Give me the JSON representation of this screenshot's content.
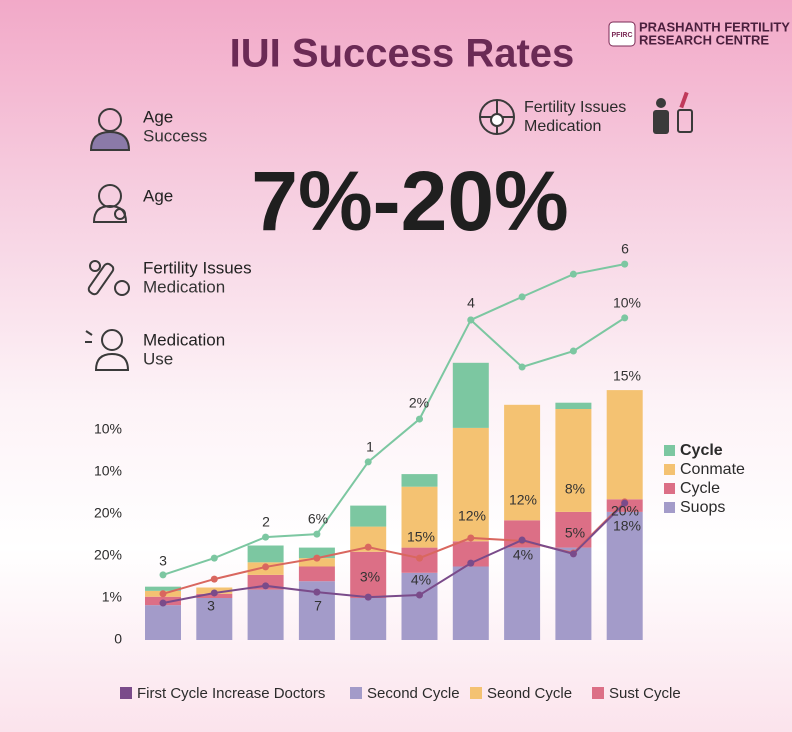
{
  "header": {
    "title": "IUI Success Rates",
    "logo_mark": "PFIRC",
    "logo_lines": [
      "PRASHANTH FERTILITY",
      "RESEARCH CENTRE"
    ],
    "headline": "7%-20%"
  },
  "side_items": [
    [
      "Age",
      "Success"
    ],
    [
      "Age"
    ],
    [
      "Fertility Issues",
      "Medication"
    ],
    [
      "Medication",
      "Use"
    ]
  ],
  "top_right_item": [
    "Fertility Issues",
    "Medication"
  ],
  "chart_data": {
    "type": "stacked-bar-line",
    "categories": [
      null,
      null,
      null,
      null,
      null,
      null,
      null,
      null,
      null,
      null
    ],
    "series": [
      {
        "name": "Suops",
        "color": "#a39bc9",
        "values": [
          0.83,
          1.0,
          1.2,
          1.4,
          1.0,
          1.6,
          1.75,
          2.2,
          2.2,
          3.05
        ]
      },
      {
        "name": "Cycle",
        "color": "#dc6f86",
        "values": [
          0.2,
          0.1,
          0.35,
          0.35,
          1.1,
          0.6,
          0.6,
          0.65,
          0.85,
          0.3
        ]
      },
      {
        "name": "Conmate",
        "color": "#f4c272",
        "values": [
          0.14,
          0.15,
          0.3,
          0.2,
          0.6,
          1.45,
          2.7,
          2.75,
          2.45,
          2.6
        ]
      },
      {
        "name": "Cycle",
        "color": "#7cc7a1",
        "values": [
          0.1,
          0,
          0.4,
          0.25,
          0.5,
          0.3,
          1.55,
          0,
          0.15,
          0
        ]
      }
    ],
    "lines": [
      {
        "color": "#7cc7a1",
        "values": [
          1.55,
          1.95,
          2.45,
          2.52,
          4.24,
          5.26,
          7.62,
          6.5,
          6.88,
          7.67
        ]
      },
      {
        "color": "#7cc7a1",
        "values": [
          null,
          null,
          null,
          null,
          null,
          null,
          7.62,
          8.17,
          8.71,
          8.95
        ]
      },
      {
        "color": "#d9675f",
        "values": [
          1.1,
          1.45,
          1.74,
          1.95,
          2.21,
          1.95,
          2.43,
          2.36,
          2.07,
          3.29
        ]
      },
      {
        "color": "#7a4b8a",
        "values": [
          0.88,
          1.12,
          1.29,
          1.14,
          1.02,
          1.07,
          1.83,
          2.38,
          2.05,
          3.26
        ]
      }
    ],
    "annotations": [
      "3",
      "3",
      "2",
      "6%",
      "7",
      "1",
      "3%",
      "2%",
      "15%",
      "4%",
      "4",
      "12%",
      "12%",
      "4%",
      "6",
      "10%",
      "15%",
      "8%",
      "5%",
      "20%",
      "18%"
    ],
    "ylim": [
      0,
      9
    ],
    "yticks": [
      0,
      {
        "value": 1,
        "label": "1%"
      },
      {
        "value": 2,
        "label": "20%"
      },
      {
        "value": 3,
        "label": "20%"
      },
      {
        "value": 4,
        "label": "10%"
      },
      {
        "value": 5,
        "label": "10%"
      }
    ],
    "grid": false,
    "bottom_legend": [
      {
        "name": "First Cycle Increase Doctors",
        "color": "#7a4b8a"
      },
      {
        "name": "Second Cycle",
        "color": "#a39bc9"
      },
      {
        "name": "Seond Cycle",
        "color": "#f4c272"
      },
      {
        "name": "Sust Cycle",
        "color": "#dc6f86"
      }
    ]
  }
}
